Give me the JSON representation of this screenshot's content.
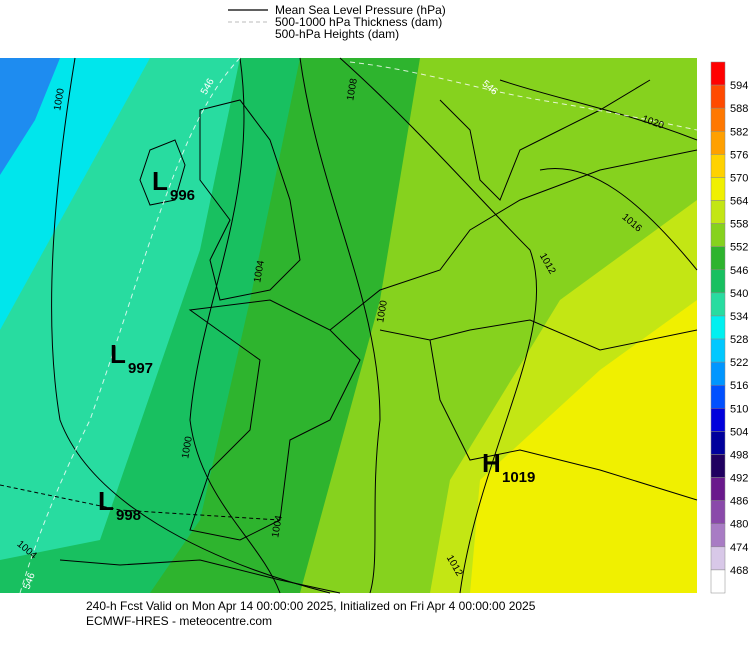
{
  "legend": [
    "Mean Sea Level Pressure (hPa)",
    "500-1000 hPa Thickness (dam)",
    "500-hPa Heights (dam)"
  ],
  "centers": [
    {
      "type": "L",
      "value": "996"
    },
    {
      "type": "L",
      "value": "997"
    },
    {
      "type": "L",
      "value": "998"
    },
    {
      "type": "H",
      "value": "1019"
    }
  ],
  "contour_labels": [
    "1000",
    "1008",
    "1004",
    "1000",
    "1000",
    "1004",
    "1004",
    "1012",
    "1016",
    "1020",
    "1012",
    "546",
    "546",
    "546"
  ],
  "colorbar": {
    "labels": [
      594,
      588,
      582,
      576,
      570,
      564,
      558,
      552,
      546,
      540,
      534,
      528,
      522,
      516,
      510,
      504,
      498,
      492,
      486,
      480,
      474,
      468
    ],
    "colors": [
      "#ff0000",
      "#ff4a00",
      "#ff7800",
      "#ffa000",
      "#ffd200",
      "#f0f000",
      "#c3e614",
      "#86d21e",
      "#2eb42e",
      "#18c060",
      "#28dca0",
      "#00f0f0",
      "#00c8ff",
      "#0096ff",
      "#0050ff",
      "#0000dc",
      "#00009c",
      "#200060",
      "#6a1a8c",
      "#8a4aaa",
      "#a87cc4",
      "#d8c8e8",
      "#ffffff"
    ]
  },
  "footer": [
    "240-h Fcst Valid on Mon Apr 14 00:00:00 2025, Initialized on Fri Apr  4 00:00:00 2025",
    "ECMWF-HRES  - meteocentre.com"
  ]
}
